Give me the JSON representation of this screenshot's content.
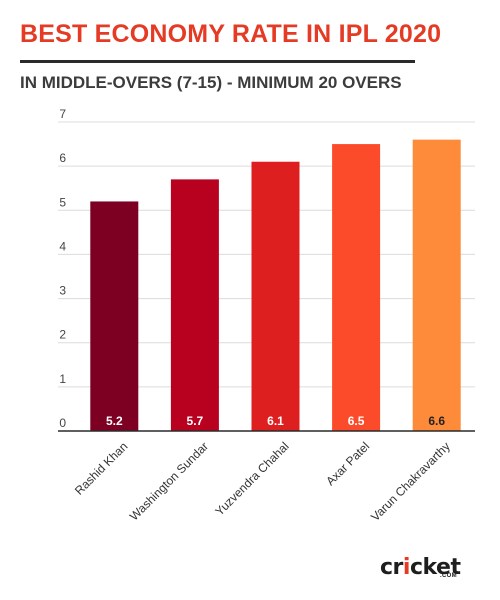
{
  "title": "BEST ECONOMY RATE IN IPL 2020",
  "subtitle": "IN MIDDLE-OVERS (7-15) - MINIMUM 20 OVERS",
  "logo": {
    "prefix": "cr",
    "accent": "i",
    "suffix": "cket",
    "sub": ".COM"
  },
  "colors": {
    "title": "#e53a24",
    "grid": "#dcdcdc",
    "axis": "#2a2a2a",
    "label_light": "#ffffff",
    "label_dark": "#222222"
  },
  "chart_data": {
    "type": "bar",
    "categories": [
      "Rashid Khan",
      "Washington Sundar",
      "Yuzvendra Chahal",
      "Axar Patel",
      "Varun Chakravarthy"
    ],
    "values": [
      5.2,
      5.7,
      6.1,
      6.5,
      6.6
    ],
    "value_labels": [
      "5.2",
      "5.7",
      "6.1",
      "6.5",
      "6.6"
    ],
    "bar_colors": [
      "#7d0022",
      "#b8001f",
      "#dd1f1f",
      "#fc4b2a",
      "#fe8b3a"
    ],
    "ylim": [
      0,
      7
    ],
    "yticks": [
      0,
      1,
      2,
      3,
      4,
      5,
      6,
      7
    ],
    "grid": true,
    "title": "BEST ECONOMY RATE IN IPL 2020",
    "xlabel": "",
    "ylabel": ""
  }
}
